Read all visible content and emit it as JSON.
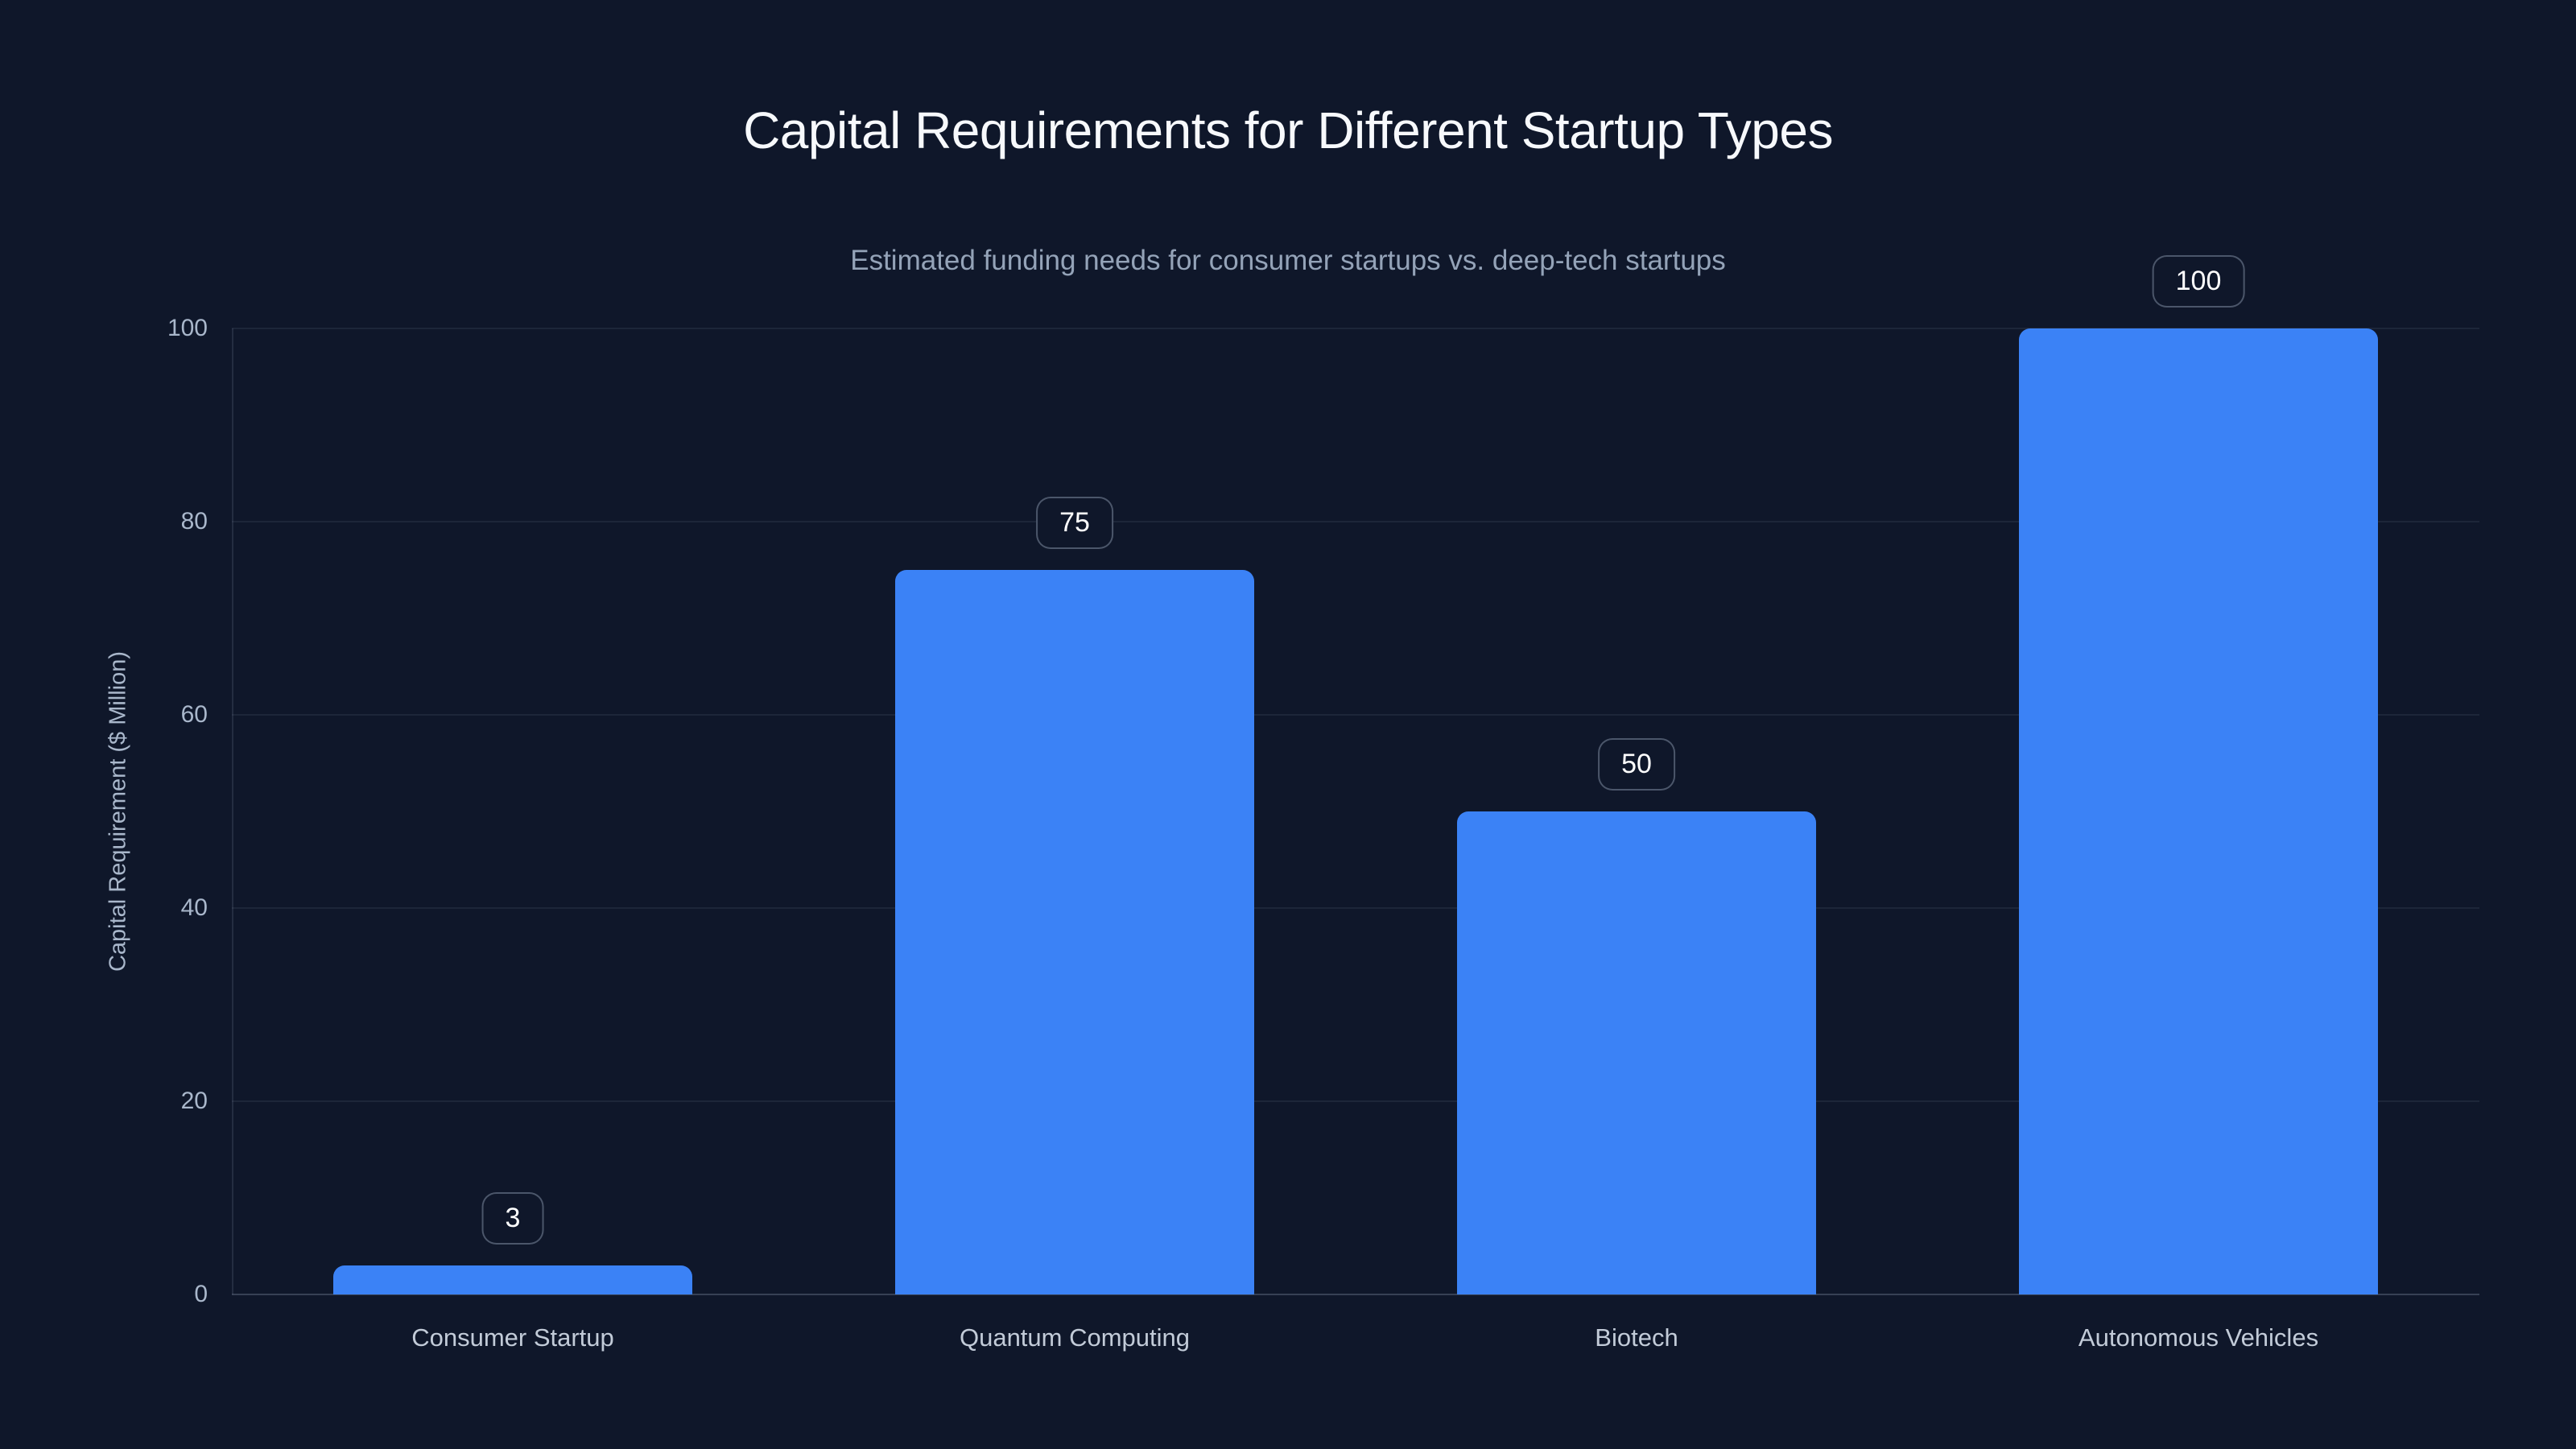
{
  "header": {
    "title": "Capital Requirements for Different Startup Types",
    "subtitle": "Estimated funding needs for consumer startups vs. deep-tech startups"
  },
  "chart_data": {
    "type": "bar",
    "title": "Capital Requirements for Different Startup Types",
    "subtitle": "Estimated funding needs for consumer startups vs. deep-tech startups",
    "categories": [
      "Consumer Startup",
      "Quantum Computing",
      "Biotech",
      "Autonomous Vehicles"
    ],
    "values": [
      3,
      75,
      50,
      100
    ],
    "value_labels": [
      "3",
      "75",
      "50",
      "100"
    ],
    "xlabel": "",
    "ylabel": "Capital Requirement ($ Million)",
    "ylim": [
      0,
      100
    ],
    "yticks": [
      0,
      20,
      40,
      60,
      80,
      100
    ],
    "grid": "horizontal-only",
    "legend": "none",
    "annotations": "value shown in rounded outlined badge above each bar",
    "colors": {
      "background": "#0f172a",
      "bar": "#3b82f6",
      "title": "#f7f9fc",
      "subtitle": "#94a3b8",
      "tick": "#a9b7cb",
      "category": "#c2cbd8",
      "badge_text": "#ffffff",
      "badge_border": "rgba(148,163,184,0.45)",
      "gridline": "rgba(148,163,184,0.11)",
      "axis_left": "rgba(148,163,184,0.16)",
      "axis_bottom": "rgba(148,163,184,0.30)"
    }
  }
}
